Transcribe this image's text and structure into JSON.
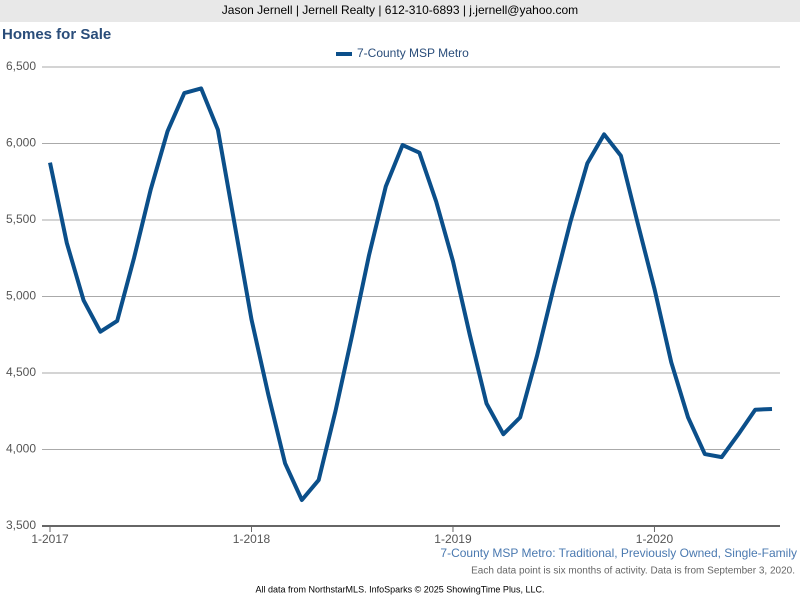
{
  "header": "Jason Jernell | Jernell Realty | 612-310-6893 | j.jernell@yahoo.com",
  "chart_data": {
    "type": "line",
    "title": "Homes for Sale",
    "x": [
      "1-2017",
      "2-2017",
      "3-2017",
      "4-2017",
      "5-2017",
      "6-2017",
      "7-2017",
      "8-2017",
      "9-2017",
      "10-2017",
      "11-2017",
      "12-2017",
      "1-2018",
      "2-2018",
      "3-2018",
      "4-2018",
      "5-2018",
      "6-2018",
      "7-2018",
      "8-2018",
      "9-2018",
      "10-2018",
      "11-2018",
      "12-2018",
      "1-2019",
      "2-2019",
      "3-2019",
      "4-2019",
      "5-2019",
      "6-2019",
      "7-2019",
      "8-2019",
      "9-2019",
      "10-2019",
      "11-2019",
      "12-2019",
      "1-2020",
      "2-2020",
      "3-2020",
      "4-2020",
      "5-2020",
      "6-2020",
      "7-2020",
      "8-2020"
    ],
    "series": [
      {
        "name": "7-County MSP Metro",
        "color": "#0b4f8a",
        "values": [
          5875,
          5350,
          4975,
          4770,
          4840,
          5250,
          5700,
          6080,
          6330,
          6360,
          6090,
          5470,
          4850,
          4360,
          3910,
          3670,
          3800,
          4250,
          4750,
          5270,
          5720,
          5990,
          5940,
          5620,
          5230,
          4750,
          4300,
          4100,
          4210,
          4610,
          5060,
          5490,
          5870,
          6060,
          5920,
          5480,
          5050,
          4570,
          4210,
          3970,
          3950,
          4100,
          4260,
          4265
        ]
      }
    ],
    "xticks": [
      "1-2017",
      "1-2018",
      "1-2019",
      "1-2020"
    ],
    "ylim": [
      3500,
      6500
    ],
    "yticks": [
      {
        "value": 3500,
        "label": "3,500"
      },
      {
        "value": 4000,
        "label": "4,000"
      },
      {
        "value": 4500,
        "label": "4,500"
      },
      {
        "value": 5000,
        "label": "5,000"
      },
      {
        "value": 5500,
        "label": "5,500"
      },
      {
        "value": 6000,
        "label": "6,000"
      },
      {
        "value": 6500,
        "label": "6,500"
      }
    ],
    "grid": true,
    "legend": "top",
    "subtitle": "7-County MSP Metro: Traditional, Previously Owned, Single-Family",
    "note": "Each data point is six months of activity. Data is from September 3, 2020."
  },
  "footer": "All data from NorthstarMLS. InfoSparks © 2025 ShowingTime Plus, LLC."
}
